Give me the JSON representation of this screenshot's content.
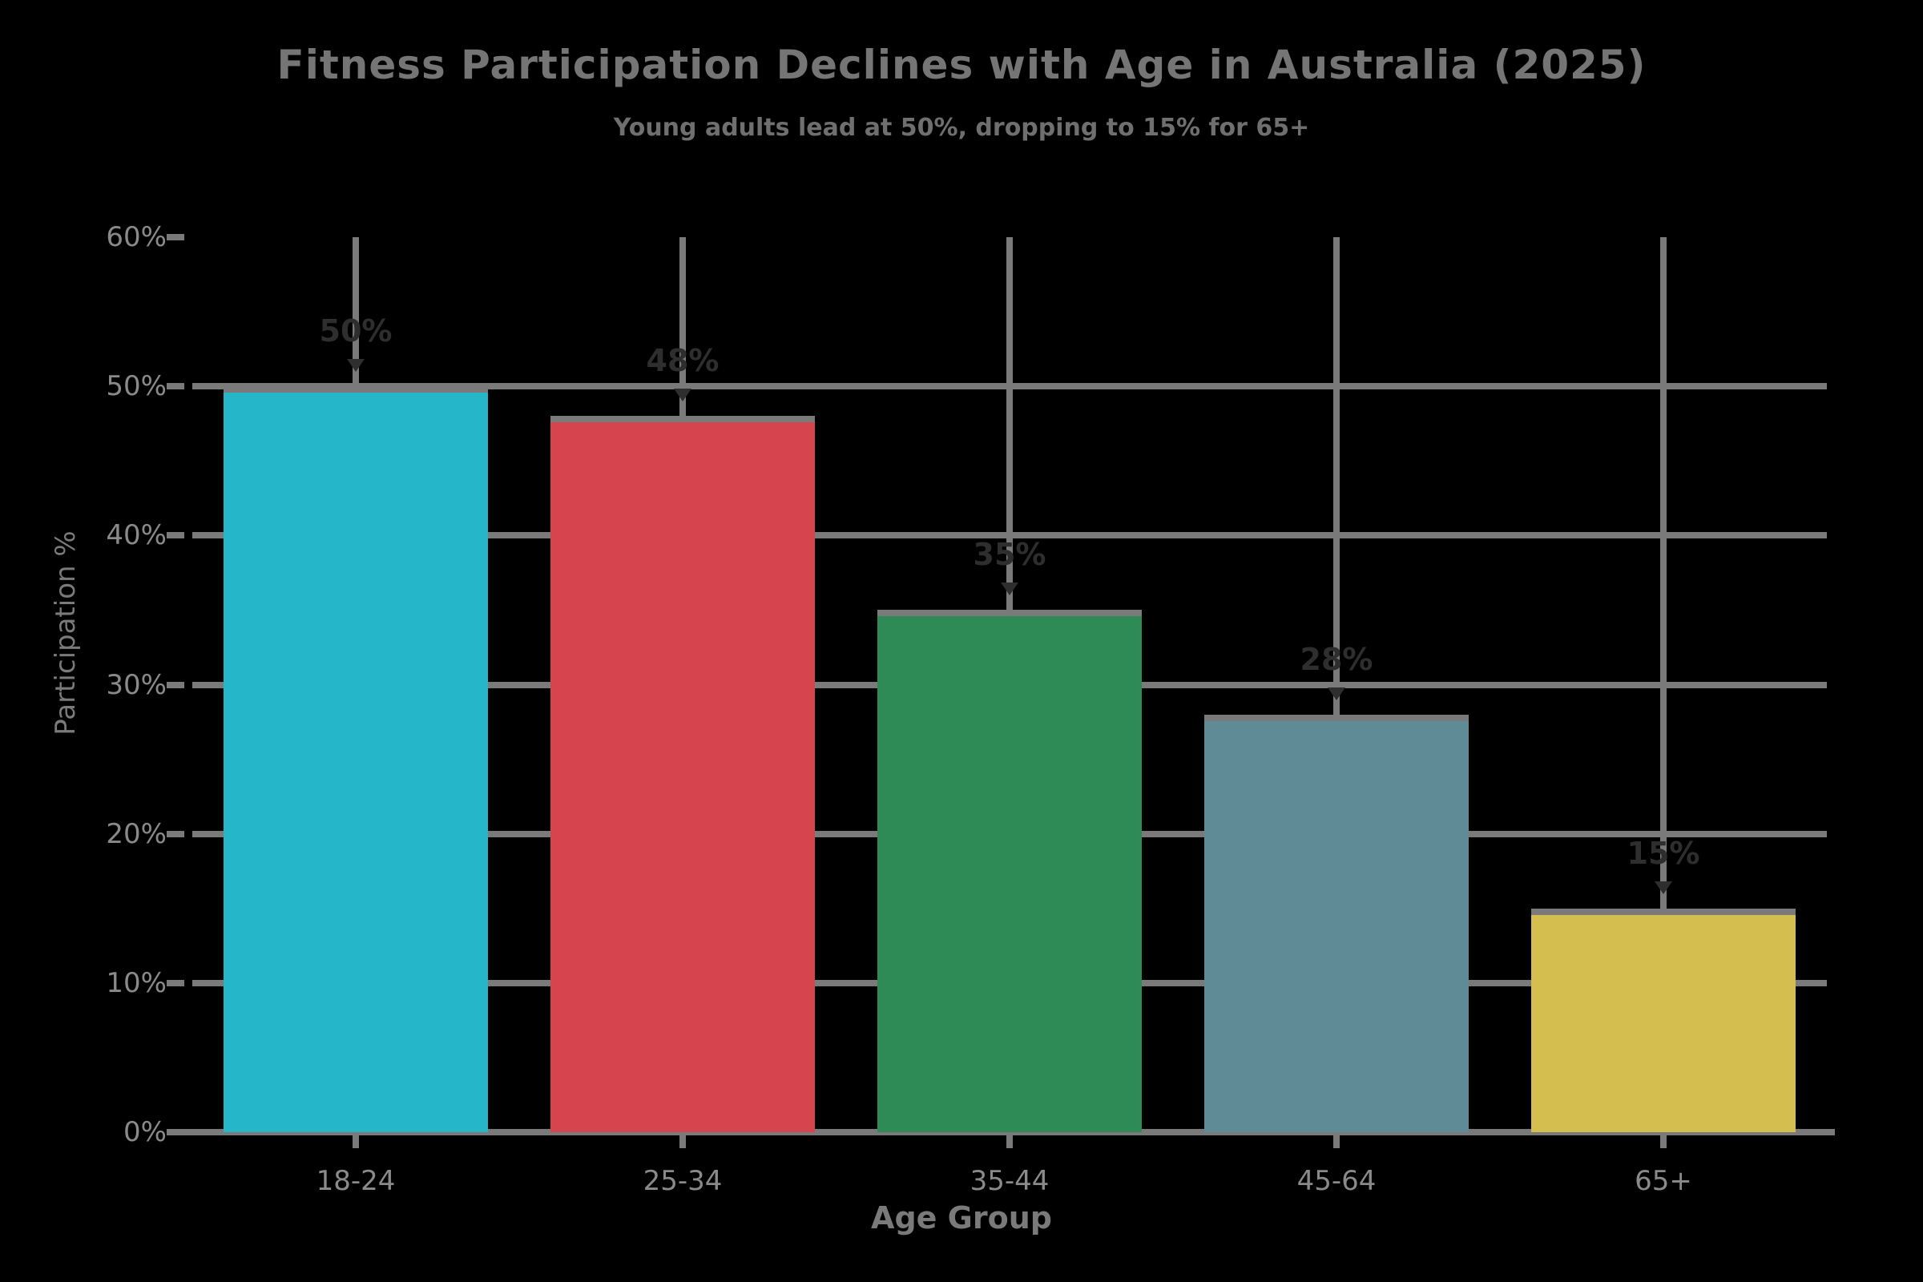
{
  "chart_data": {
    "type": "bar",
    "title": "Fitness Participation Declines with Age in Australia (2025)",
    "subtitle": "Young adults lead at 50%, dropping to 15% for 65+",
    "xlabel": "Age Group",
    "ylabel": "Participation %",
    "categories": [
      "18-24",
      "25-34",
      "35-44",
      "45-64",
      "65+"
    ],
    "values": [
      50,
      48,
      35,
      28,
      15
    ],
    "bar_value_labels": [
      "50%",
      "48%",
      "35%",
      "28%",
      "15%"
    ],
    "bar_colors": [
      "#26b6c9",
      "#d6454d",
      "#2e8b56",
      "#5e8b96",
      "#d3be4f"
    ],
    "ylim": [
      0,
      60
    ],
    "yticks": [
      0,
      10,
      20,
      30,
      40,
      50,
      60
    ],
    "ytick_labels": [
      "0%",
      "10%",
      "20%",
      "30%",
      "40%",
      "50%",
      "60%"
    ],
    "grid": true,
    "legend": false,
    "colors": {
      "background": "#000000",
      "grid": "#7a7a7a",
      "title": "#757575",
      "subtitle": "#6f6f6f",
      "tick_label": "#8a8a8a",
      "axis_label": "#7a7a7a",
      "value_label": "#2e2e2e"
    }
  }
}
